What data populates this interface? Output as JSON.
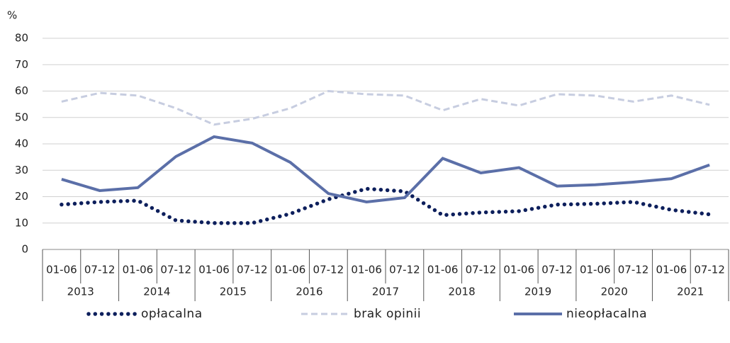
{
  "chart_data": {
    "type": "line",
    "y_label": "%",
    "categories": [
      "01-06",
      "07-12",
      "01-06",
      "07-12",
      "01-06",
      "07-12",
      "01-06",
      "07-12",
      "01-06",
      "07-12",
      "01-06",
      "07-12",
      "01-06",
      "07-12",
      "01-06",
      "07-12",
      "01-06",
      "07-12"
    ],
    "groups": [
      "2013",
      "2014",
      "2015",
      "2016",
      "2017",
      "2018",
      "2019",
      "2020",
      "2021"
    ],
    "series": [
      {
        "name": "opłacalna",
        "color": "#0d1f5c",
        "style": "dotted",
        "values": [
          17,
          18,
          18.5,
          11,
          10,
          10,
          13.5,
          19,
          23,
          22,
          13,
          14,
          14.5,
          17,
          17.3,
          18,
          15,
          13.3
        ]
      },
      {
        "name": "brak opinii",
        "color": "#c7cde0",
        "style": "dashed",
        "values": [
          56,
          59.3,
          58.3,
          53.5,
          47.3,
          49.5,
          53.5,
          60,
          58.8,
          58.3,
          52.7,
          57,
          54.5,
          58.8,
          58.3,
          56,
          58.3,
          54.8
        ]
      },
      {
        "name": "nieopłacalna",
        "color": "#5b6fa8",
        "style": "solid",
        "values": [
          26.6,
          22.3,
          23.4,
          35.2,
          42.7,
          40.3,
          33,
          21.2,
          18,
          19.6,
          34.5,
          29,
          31,
          24,
          24.5,
          25.5,
          26.8,
          32
        ]
      }
    ],
    "ylim": [
      0,
      80
    ],
    "yticks": [
      0,
      10,
      20,
      30,
      40,
      50,
      60,
      70,
      80
    ],
    "grid": true
  }
}
